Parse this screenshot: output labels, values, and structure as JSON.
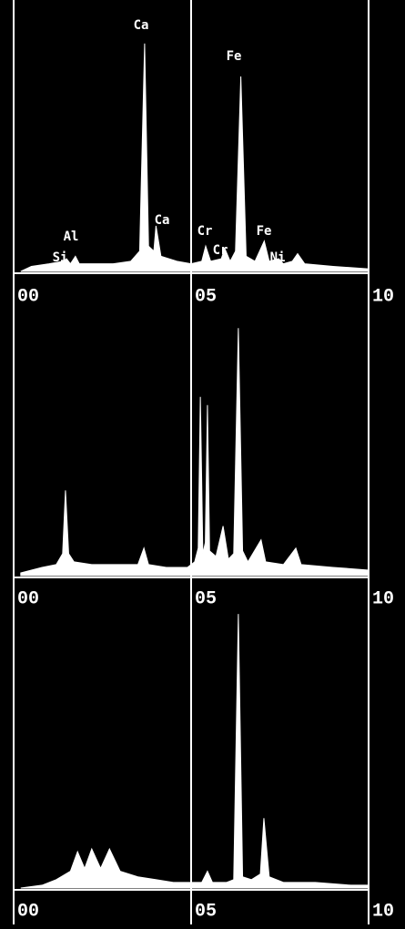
{
  "chart_data": [
    {
      "type": "area",
      "color": "#ffffff",
      "grid": true,
      "x": [
        0.2,
        0.5,
        1.0,
        1.4,
        1.49,
        1.6,
        1.74,
        1.85,
        2.2,
        2.8,
        3.3,
        3.55,
        3.69,
        3.8,
        3.95,
        4.01,
        4.15,
        4.6,
        5.0,
        5.3,
        5.41,
        5.55,
        5.85,
        5.95,
        6.1,
        6.25,
        6.4,
        6.55,
        6.8,
        7.06,
        7.2,
        7.47,
        7.6,
        7.85,
        8.0,
        8.2,
        9.0,
        10.0
      ],
      "values": [
        0,
        2,
        3,
        4,
        5,
        3,
        6,
        3,
        3,
        3,
        4,
        8,
        90,
        10,
        8,
        18,
        6,
        4,
        3,
        4,
        10,
        4,
        5,
        9,
        4,
        8,
        77,
        6,
        4,
        12,
        4,
        5,
        3,
        4,
        7,
        3,
        2,
        1
      ],
      "xlim": [
        0,
        10
      ],
      "ylim": [
        0,
        100
      ],
      "xticks": [
        {
          "value": 0,
          "label": "00"
        },
        {
          "value": 5,
          "label": "05"
        },
        {
          "value": 10,
          "label": "10"
        }
      ],
      "annotations": [
        "Ca",
        "Ca",
        "Al",
        "Si",
        "Cr",
        "Cr",
        "Fe",
        "Fe",
        "Ni"
      ]
    },
    {
      "type": "area",
      "color": "#ffffff",
      "grid": true,
      "x": [
        0.2,
        0.8,
        1.2,
        1.38,
        1.46,
        1.55,
        1.7,
        2.2,
        3.0,
        3.5,
        3.67,
        3.8,
        4.3,
        4.9,
        5.1,
        5.2,
        5.26,
        5.33,
        5.4,
        5.46,
        5.52,
        5.7,
        5.9,
        6.05,
        6.2,
        6.33,
        6.45,
        6.6,
        6.97,
        7.1,
        7.6,
        7.95,
        8.1,
        9.0,
        10.0
      ],
      "values": [
        1,
        3,
        4,
        8,
        31,
        8,
        5,
        4,
        4,
        4,
        10,
        4,
        3,
        3,
        5,
        10,
        65,
        8,
        12,
        62,
        9,
        7,
        18,
        6,
        8,
        90,
        9,
        5,
        13,
        5,
        4,
        10,
        4,
        3,
        2
      ],
      "xlim": [
        0,
        10
      ],
      "ylim": [
        0,
        100
      ],
      "xticks": [
        {
          "value": 0,
          "label": "00"
        },
        {
          "value": 5,
          "label": "05"
        },
        {
          "value": 10,
          "label": "10"
        }
      ]
    },
    {
      "type": "area",
      "color": "#ffffff",
      "grid": true,
      "x": [
        0.2,
        0.8,
        1.2,
        1.6,
        1.8,
        2.0,
        2.2,
        2.45,
        2.7,
        3.0,
        3.5,
        4.0,
        4.5,
        5.0,
        5.3,
        5.46,
        5.6,
        6.0,
        6.2,
        6.33,
        6.45,
        6.7,
        6.95,
        7.05,
        7.2,
        7.6,
        8.5,
        9.5,
        10.0
      ],
      "values": [
        0,
        1,
        3,
        6,
        13,
        7,
        14,
        7,
        14,
        6,
        4,
        3,
        2,
        2,
        2,
        6,
        2,
        2,
        3,
        98,
        4,
        3,
        5,
        25,
        4,
        2,
        2,
        1,
        1
      ],
      "xlim": [
        0,
        10
      ],
      "ylim": [
        0,
        100
      ],
      "xticks": [
        {
          "value": 0,
          "label": "00"
        },
        {
          "value": 5,
          "label": "05"
        },
        {
          "value": 10,
          "label": "10"
        }
      ]
    }
  ]
}
